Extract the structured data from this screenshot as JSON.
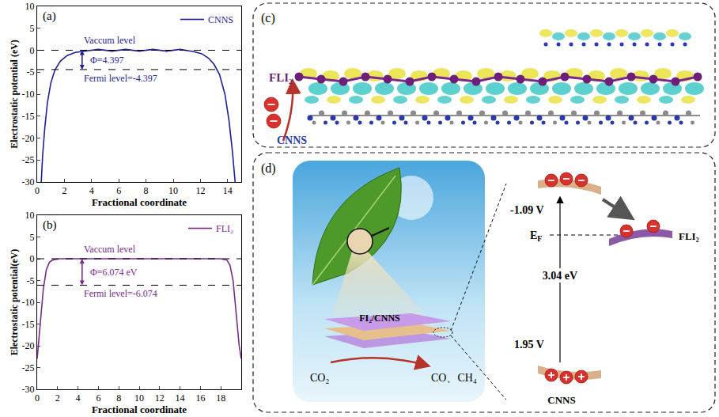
{
  "chart_data": [
    {
      "type": "line",
      "panel_label": "(a)",
      "xlabel": "Fractional coordinate",
      "ylabel": "Electrostatic potential (eV)",
      "xlim": [
        0,
        15
      ],
      "xticks": [
        0,
        2,
        4,
        6,
        8,
        10,
        12,
        14
      ],
      "ylim": [
        -30,
        10
      ],
      "yticks": [
        -30,
        -25,
        -20,
        -15,
        -10,
        -5,
        0,
        5,
        10
      ],
      "legend": "upper right",
      "reference_lines": [
        0,
        -4.397
      ],
      "annotations": [
        "Vaccum level",
        "Φ=4.397",
        "Fermi level=-4.397"
      ],
      "x": [
        0.3,
        0.4,
        0.55,
        0.75,
        1.0,
        1.3,
        1.7,
        2.2,
        2.8,
        3.5,
        4.5,
        5.5,
        6.5,
        7.5,
        8.5,
        9.5,
        10.5,
        11.5,
        12.1,
        12.6,
        13.0,
        13.4,
        13.8,
        14.1,
        14.35,
        14.55
      ],
      "series": [
        {
          "name": "CNNS",
          "color": "#1f1f9a",
          "values": [
            -30,
            -24,
            -18,
            -12,
            -7.5,
            -4.5,
            -2.5,
            -1.2,
            -0.5,
            -0.2,
            0.2,
            -0.2,
            0.2,
            -0.2,
            0.2,
            -0.2,
            0.2,
            -0.3,
            -0.8,
            -1.8,
            -3.2,
            -5.5,
            -10,
            -16,
            -23,
            -30
          ]
        }
      ]
    },
    {
      "type": "line",
      "panel_label": "(b)",
      "xlabel": "Fractional coordinate",
      "ylabel": "Electrostatic potential(eV)",
      "xlim": [
        0,
        20
      ],
      "xticks": [
        0,
        2,
        4,
        6,
        8,
        10,
        12,
        14,
        16,
        18
      ],
      "ylim": [
        -30,
        10
      ],
      "yticks": [
        -30,
        -25,
        -20,
        -15,
        -10,
        -5,
        0,
        5,
        10
      ],
      "legend": "upper right",
      "reference_lines": [
        0,
        -6.074
      ],
      "annotations": [
        "Vaccum level",
        "Φ=6.074 eV",
        "Fermi level=-6.074"
      ],
      "x": [
        0,
        0.3,
        0.6,
        0.9,
        1.2,
        1.6,
        2.2,
        3,
        4,
        5,
        6,
        7,
        8,
        9,
        10,
        11,
        12,
        13,
        14,
        15,
        16,
        17,
        18,
        18.6,
        18.9,
        19.2,
        19.5,
        19.8,
        20
      ],
      "series": [
        {
          "name": "FLI₂",
          "color": "#7a2a8c",
          "values": [
            -23,
            -15,
            -7,
            -2.5,
            -0.8,
            -0.2,
            0,
            0,
            0,
            0,
            0,
            0,
            0,
            0,
            0,
            0,
            0,
            0,
            0,
            0,
            0,
            0,
            0,
            -0.3,
            -1.5,
            -5,
            -12,
            -20,
            -23
          ]
        }
      ]
    }
  ],
  "diagrams": {
    "c": {
      "label": "(c)",
      "top_layer": "FLI₂",
      "bottom_layer": "CNNS"
    },
    "d": {
      "label": "(d)",
      "composite": "FI₂/CNNS",
      "reactant": "CO₂",
      "products": "CO、CH₄",
      "conduction_band": "-1.09 V",
      "band_gap": "3.04 eV",
      "valence_band": "1.95 V",
      "fermi_level": [
        "E",
        "F"
      ],
      "right_material": "FLI₂",
      "left_material": "CNNS"
    }
  }
}
